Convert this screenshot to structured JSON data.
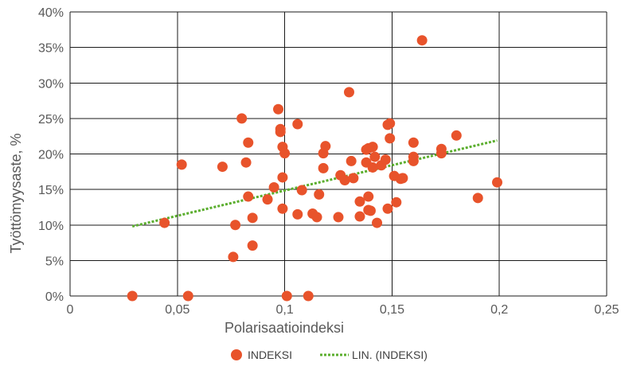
{
  "chart_data": {
    "type": "scatter",
    "xlabel": "Polarisaatioindeksi",
    "ylabel": "Työttömyysaste, %",
    "xlim": [
      0,
      0.25
    ],
    "ylim": [
      0,
      40
    ],
    "x_ticks": [
      0,
      0.05,
      0.1,
      0.15,
      0.2,
      0.25
    ],
    "x_tick_labels": [
      "0",
      "0,05",
      "0,1",
      "0,15",
      "0,2",
      "0,25"
    ],
    "y_ticks": [
      0,
      5,
      10,
      15,
      20,
      25,
      30,
      35,
      40
    ],
    "y_tick_labels": [
      "0%",
      "5%",
      "10%",
      "15%",
      "20%",
      "25%",
      "30%",
      "35%",
      "40%"
    ],
    "grid": "both",
    "legend_position": "bottom",
    "series": [
      {
        "name": "INDEKSI",
        "color": "#E8532B",
        "points": [
          [
            0.029,
            0.0
          ],
          [
            0.044,
            10.3
          ],
          [
            0.052,
            18.5
          ],
          [
            0.055,
            0.0
          ],
          [
            0.071,
            18.2
          ],
          [
            0.076,
            5.5
          ],
          [
            0.077,
            10.0
          ],
          [
            0.08,
            25.0
          ],
          [
            0.082,
            18.8
          ],
          [
            0.083,
            14.0
          ],
          [
            0.083,
            21.6
          ],
          [
            0.085,
            7.1
          ],
          [
            0.085,
            11.0
          ],
          [
            0.092,
            13.6
          ],
          [
            0.095,
            15.3
          ],
          [
            0.097,
            26.3
          ],
          [
            0.098,
            23.1
          ],
          [
            0.098,
            23.5
          ],
          [
            0.099,
            12.3
          ],
          [
            0.099,
            16.7
          ],
          [
            0.099,
            21.0
          ],
          [
            0.1,
            20.1
          ],
          [
            0.101,
            0.0
          ],
          [
            0.106,
            24.2
          ],
          [
            0.106,
            11.5
          ],
          [
            0.108,
            14.9
          ],
          [
            0.111,
            0.0
          ],
          [
            0.113,
            11.6
          ],
          [
            0.115,
            11.1
          ],
          [
            0.116,
            14.3
          ],
          [
            0.118,
            18.0
          ],
          [
            0.118,
            20.1
          ],
          [
            0.119,
            21.1
          ],
          [
            0.125,
            11.1
          ],
          [
            0.126,
            17.0
          ],
          [
            0.128,
            16.3
          ],
          [
            0.13,
            28.7
          ],
          [
            0.131,
            19.0
          ],
          [
            0.132,
            16.6
          ],
          [
            0.135,
            11.2
          ],
          [
            0.135,
            13.3
          ],
          [
            0.138,
            18.8
          ],
          [
            0.138,
            20.6
          ],
          [
            0.139,
            12.1
          ],
          [
            0.139,
            14.0
          ],
          [
            0.139,
            20.8
          ],
          [
            0.14,
            12.0
          ],
          [
            0.141,
            18.1
          ],
          [
            0.141,
            21.0
          ],
          [
            0.142,
            19.6
          ],
          [
            0.143,
            10.3
          ],
          [
            0.145,
            18.4
          ],
          [
            0.147,
            19.2
          ],
          [
            0.148,
            24.1
          ],
          [
            0.148,
            12.3
          ],
          [
            0.149,
            22.2
          ],
          [
            0.149,
            24.3
          ],
          [
            0.151,
            16.9
          ],
          [
            0.152,
            13.2
          ],
          [
            0.154,
            16.5
          ],
          [
            0.155,
            16.6
          ],
          [
            0.16,
            19.0
          ],
          [
            0.16,
            19.6
          ],
          [
            0.16,
            21.6
          ],
          [
            0.164,
            36.0
          ],
          [
            0.173,
            20.1
          ],
          [
            0.173,
            20.7
          ],
          [
            0.18,
            22.6
          ],
          [
            0.19,
            13.8
          ],
          [
            0.199,
            16.0
          ]
        ]
      }
    ],
    "trendline": {
      "name": "LIN. (INDEKSI)",
      "color": "#5BAE2E",
      "style": "dotted",
      "x": [
        0.029,
        0.199
      ],
      "y": [
        9.8,
        21.9
      ]
    }
  }
}
